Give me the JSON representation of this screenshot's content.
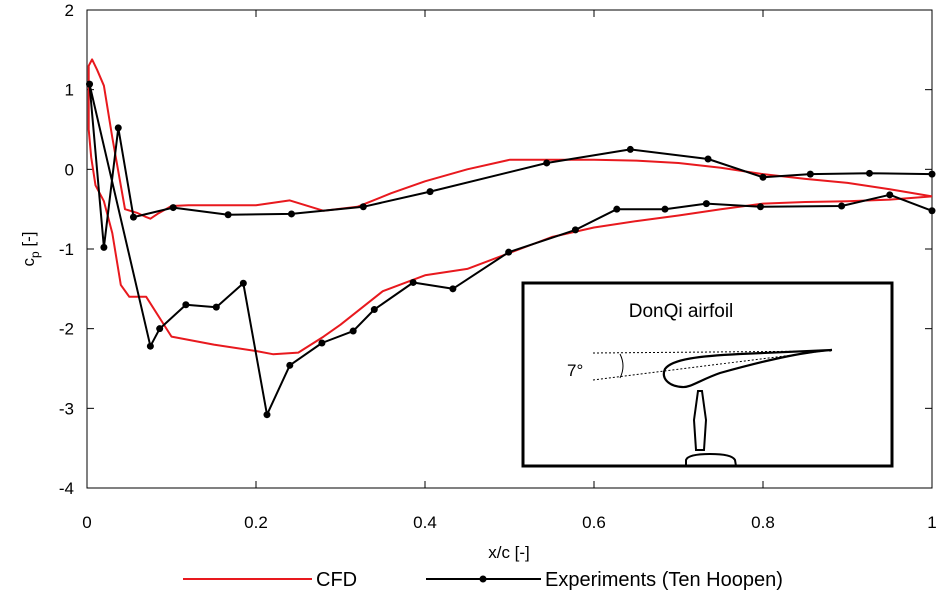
{
  "chart_data": {
    "type": "line",
    "title": "",
    "xlabel": "x/c [-]",
    "ylabel_main": "c",
    "ylabel_sub": "p",
    "ylabel_suffix": " [-]",
    "xlim": [
      0,
      1
    ],
    "ylim": [
      -4,
      2
    ],
    "xticks": [
      0,
      0.2,
      0.4,
      0.6,
      0.8,
      1
    ],
    "xtick_labels": [
      "0",
      "0.2",
      "0.4",
      "0.6",
      "0.8",
      "1"
    ],
    "yticks": [
      2,
      1,
      0,
      -1,
      -2,
      -3,
      -4
    ],
    "ytick_labels": [
      "2",
      "1",
      "0",
      "-1",
      "-2",
      "-3",
      "-4"
    ],
    "grid": false,
    "legend_position": "bottom",
    "series": [
      {
        "name": "CFD",
        "color": "#e8191e",
        "markers": false,
        "x": [
          1.0,
          0.95,
          0.9,
          0.85,
          0.8,
          0.75,
          0.7,
          0.65,
          0.6,
          0.55,
          0.5,
          0.45,
          0.4,
          0.35,
          0.3,
          0.28,
          0.25,
          0.22,
          0.2,
          0.15,
          0.1,
          0.07,
          0.05,
          0.04,
          0.03,
          0.02,
          0.01,
          0.005,
          0.002,
          0.002,
          0.006,
          0.012,
          0.02,
          0.03,
          0.045,
          0.06,
          0.07,
          0.075,
          0.085,
          0.1,
          0.12,
          0.14,
          0.17,
          0.2,
          0.24,
          0.28,
          0.32,
          0.36,
          0.4,
          0.45,
          0.5,
          0.55,
          0.6,
          0.65,
          0.7,
          0.75,
          0.8,
          0.85,
          0.9,
          0.95,
          1.0
        ],
        "y": [
          -0.34,
          -0.38,
          -0.4,
          -0.41,
          -0.43,
          -0.5,
          -0.58,
          -0.65,
          -0.73,
          -0.85,
          -1.05,
          -1.25,
          -1.33,
          -1.53,
          -1.95,
          -2.1,
          -2.3,
          -2.32,
          -2.28,
          -2.2,
          -2.1,
          -1.6,
          -1.6,
          -1.45,
          -0.8,
          -0.4,
          -0.2,
          0.15,
          0.5,
          1.3,
          1.38,
          1.25,
          1.05,
          0.4,
          -0.5,
          -0.55,
          -0.6,
          -0.62,
          -0.55,
          -0.46,
          -0.45,
          -0.45,
          -0.45,
          -0.45,
          -0.39,
          -0.52,
          -0.47,
          -0.3,
          -0.15,
          0.0,
          0.12,
          0.12,
          0.12,
          0.11,
          0.08,
          0.02,
          -0.06,
          -0.12,
          -0.17,
          -0.25,
          -0.34
        ]
      },
      {
        "name": "Experiments (Ten Hoopen)",
        "color": "#000000",
        "markers": true,
        "x": [
          1.0,
          0.95,
          0.893,
          0.797,
          0.733,
          0.684,
          0.627,
          0.578,
          0.499,
          0.433,
          0.386,
          0.34,
          0.315,
          0.278,
          0.24,
          0.213,
          0.185,
          0.153,
          0.117,
          0.086,
          0.075,
          0.003,
          0.02,
          0.037,
          0.055,
          0.102,
          0.167,
          0.242,
          0.327,
          0.406,
          0.544,
          0.643,
          0.735,
          0.8,
          0.856,
          0.926,
          1.0
        ],
        "y": [
          -0.52,
          -0.32,
          -0.46,
          -0.47,
          -0.43,
          -0.5,
          -0.5,
          -0.76,
          -1.04,
          -1.5,
          -1.42,
          -1.76,
          -2.03,
          -2.18,
          -2.46,
          -3.08,
          -1.43,
          -1.73,
          -1.7,
          -2.0,
          -2.22,
          1.07,
          -0.98,
          0.52,
          -0.6,
          -0.48,
          -0.57,
          -0.56,
          -0.47,
          -0.28,
          0.08,
          0.25,
          0.13,
          -0.1,
          -0.06,
          -0.05,
          -0.06
        ]
      }
    ],
    "inset": {
      "title": "DonQi airfoil",
      "angle_label": "7°"
    }
  }
}
